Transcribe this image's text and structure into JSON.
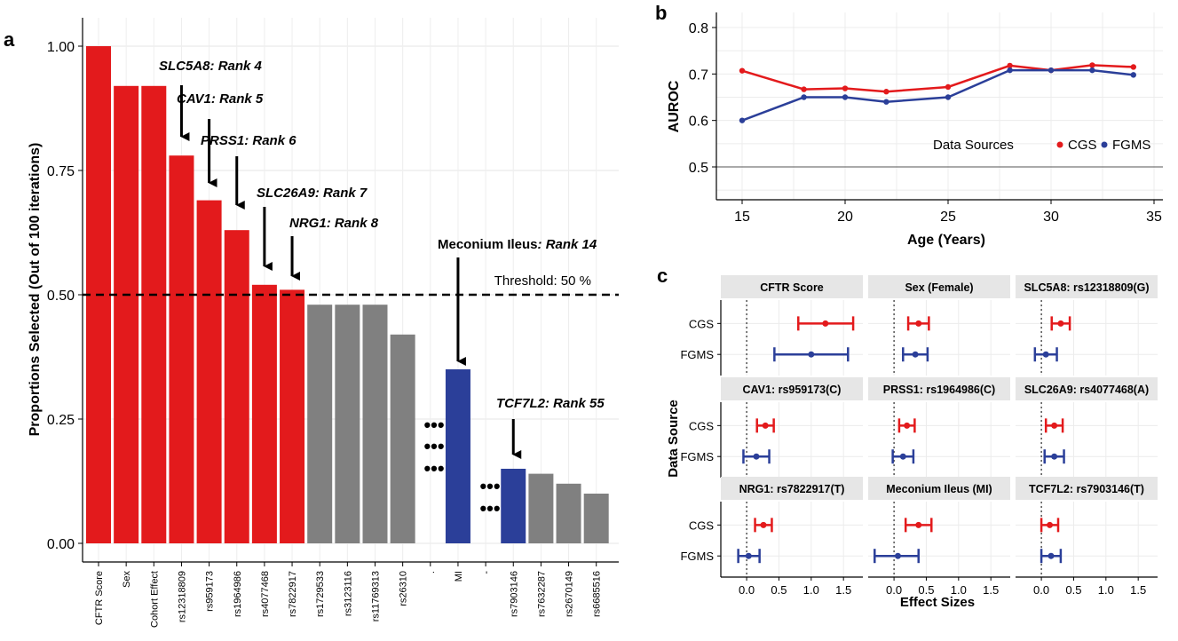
{
  "panels": {
    "a": "a",
    "b": "b",
    "c": "c"
  },
  "chart_data": [
    {
      "type": "bar",
      "panel": "a",
      "title": "",
      "xlabel": "",
      "ylabel": "Proportions Selected (Out of 100 iterations)",
      "ylim": [
        0,
        1.05
      ],
      "yticks": [
        "0.00",
        "0.25",
        "0.50",
        "0.75",
        "1.00"
      ],
      "grid": true,
      "colors": {
        "red": "#e31a1c",
        "gray": "#808080",
        "blue": "#2b3f99"
      },
      "bars": [
        {
          "label": "CFTR Score",
          "value": 1.0,
          "color": "red"
        },
        {
          "label": "Sex",
          "value": 0.92,
          "color": "red"
        },
        {
          "label": "Cohort Effect",
          "value": 0.92,
          "color": "red"
        },
        {
          "label": "rs12318809",
          "value": 0.78,
          "color": "red"
        },
        {
          "label": "rs959173",
          "value": 0.69,
          "color": "red"
        },
        {
          "label": "rs1964986",
          "value": 0.63,
          "color": "red"
        },
        {
          "label": "rs4077468",
          "value": 0.52,
          "color": "red"
        },
        {
          "label": "rs7822917",
          "value": 0.51,
          "color": "red"
        },
        {
          "label": "rs1729533",
          "value": 0.48,
          "color": "gray"
        },
        {
          "label": "rs3123116",
          "value": 0.48,
          "color": "gray"
        },
        {
          "label": "rs11769313",
          "value": 0.48,
          "color": "gray"
        },
        {
          "label": "rs26310",
          "value": 0.42,
          "color": "gray"
        },
        {
          "label": ".",
          "value": null,
          "color": "none"
        },
        {
          "label": "MI",
          "value": 0.35,
          "color": "blue"
        },
        {
          "label": "-",
          "value": null,
          "color": "none"
        },
        {
          "label": "rs7903146",
          "value": 0.15,
          "color": "blue"
        },
        {
          "label": "rs7632287",
          "value": 0.14,
          "color": "gray"
        },
        {
          "label": "rs2670149",
          "value": 0.12,
          "color": "gray"
        },
        {
          "label": "rs6685516",
          "value": 0.1,
          "color": "gray"
        }
      ],
      "threshold": {
        "value": 0.5,
        "label": "Threshold: 50 %"
      },
      "annotations": [
        {
          "gene": "SLC5A8",
          "rank": ": Rank 4",
          "bar": 3,
          "italic_gene": true,
          "italic_rank": true
        },
        {
          "gene": "CAV1",
          "rank": ": Rank 5",
          "bar": 4,
          "italic_gene": true,
          "italic_rank": true
        },
        {
          "gene": "PRSS1",
          "rank": ": Rank 6",
          "bar": 5,
          "italic_gene": true,
          "italic_rank": true
        },
        {
          "gene": "SLC26A9",
          "rank": ": Rank 7",
          "bar": 6,
          "italic_gene": true,
          "italic_rank": true
        },
        {
          "gene": "NRG1",
          "rank": ": Rank 8",
          "bar": 7,
          "italic_gene": true,
          "italic_rank": true
        },
        {
          "gene": "Meconium Ileus",
          "rank": ": Rank 14",
          "bar": 13,
          "italic_gene": false,
          "italic_rank": true
        },
        {
          "gene": "TCF7L2",
          "rank": ": Rank 55",
          "bar": 15,
          "italic_gene": true,
          "italic_rank": true
        }
      ],
      "gap_marker": "•••"
    },
    {
      "type": "line",
      "panel": "b",
      "title": "",
      "xlabel": "Age (Years)",
      "ylabel": "AUROC",
      "xlim": [
        14,
        35.5
      ],
      "ylim": [
        0.43,
        0.82
      ],
      "xticks": [
        15,
        20,
        25,
        30,
        35
      ],
      "yticks": [
        "0.5",
        "0.6",
        "0.7",
        "0.8"
      ],
      "reference_line": 0.5,
      "grid": true,
      "legend": {
        "title": "Data Sources",
        "placement": "bottom-right"
      },
      "series": [
        {
          "name": "CGS",
          "color": "#e31a1c",
          "x": [
            15,
            18,
            20,
            22,
            25,
            28,
            30,
            32,
            34
          ],
          "y": [
            0.707,
            0.667,
            0.669,
            0.662,
            0.672,
            0.718,
            0.708,
            0.719,
            0.715
          ]
        },
        {
          "name": "FGMS",
          "color": "#2b3f99",
          "x": [
            15,
            18,
            20,
            22,
            25,
            28,
            30,
            32,
            34
          ],
          "y": [
            0.6,
            0.65,
            0.65,
            0.64,
            0.65,
            0.708,
            0.708,
            0.708,
            0.698
          ]
        }
      ]
    },
    {
      "type": "forest",
      "panel": "c",
      "xlabel": "Effect Sizes",
      "ylabel": "Data Source",
      "xlim": [
        -0.4,
        1.8
      ],
      "xticks": [
        "0.0",
        "0.5",
        "1.0",
        "1.5"
      ],
      "rows": [
        "CGS",
        "FGMS"
      ],
      "colors": {
        "CGS": "#e31a1c",
        "FGMS": "#2b3f99"
      },
      "facets": [
        {
          "title": "CFTR Score",
          "CGS": [
            1.22,
            0.8,
            1.65
          ],
          "FGMS": [
            1.0,
            0.43,
            1.57
          ]
        },
        {
          "title": "Sex (Female)",
          "CGS": [
            0.38,
            0.22,
            0.54
          ],
          "FGMS": [
            0.33,
            0.14,
            0.52
          ]
        },
        {
          "title": "SLC5A8: rs12318809(G)",
          "CGS": [
            0.3,
            0.16,
            0.44
          ],
          "FGMS": [
            0.07,
            -0.1,
            0.24
          ]
        },
        {
          "title": "CAV1: rs959173(C)",
          "CGS": [
            0.29,
            0.16,
            0.42
          ],
          "FGMS": [
            0.15,
            -0.05,
            0.35
          ]
        },
        {
          "title": "PRSS1: rs1964986(C)",
          "CGS": [
            0.2,
            0.08,
            0.32
          ],
          "FGMS": [
            0.14,
            -0.02,
            0.3
          ]
        },
        {
          "title": "SLC26A9: rs4077468(A)",
          "CGS": [
            0.2,
            0.07,
            0.33
          ],
          "FGMS": [
            0.2,
            0.05,
            0.35
          ]
        },
        {
          "title": "NRG1: rs7822917(T)",
          "CGS": [
            0.26,
            0.13,
            0.39
          ],
          "FGMS": [
            0.03,
            -0.13,
            0.2
          ]
        },
        {
          "title": "Meconium Ileus (MI)",
          "CGS": [
            0.38,
            0.18,
            0.58
          ],
          "FGMS": [
            0.06,
            -0.3,
            0.38
          ]
        },
        {
          "title": "TCF7L2: rs7903146(T)",
          "CGS": [
            0.13,
            0.0,
            0.26
          ],
          "FGMS": [
            0.15,
            0.0,
            0.3
          ]
        }
      ]
    }
  ]
}
